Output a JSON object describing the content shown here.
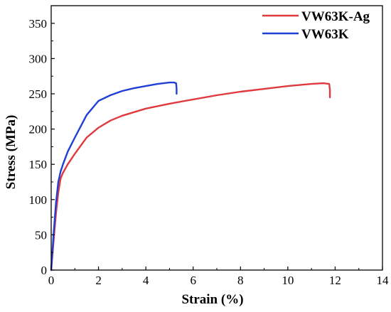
{
  "chart_data": {
    "type": "line",
    "xlabel": "Strain (%)",
    "ylabel": "Stress (MPa)",
    "xlim": [
      0,
      14
    ],
    "ylim": [
      0,
      375
    ],
    "x_ticks": [
      0,
      2,
      4,
      6,
      8,
      10,
      12,
      14
    ],
    "y_ticks": [
      0,
      50,
      100,
      150,
      200,
      250,
      300,
      350
    ],
    "grid": false,
    "legend_position": "top-right",
    "series": [
      {
        "name": "VW63K-Ag",
        "color": "#e0393e",
        "x": [
          0,
          0.1,
          0.2,
          0.3,
          0.4,
          0.5,
          0.7,
          1.0,
          1.5,
          2.0,
          2.5,
          3.0,
          4.0,
          5.0,
          6.0,
          7.0,
          8.0,
          9.0,
          10.0,
          11.0,
          11.5,
          11.75,
          11.78,
          11.78
        ],
        "y": [
          0,
          40,
          80,
          110,
          130,
          138,
          150,
          165,
          188,
          202,
          212,
          219,
          229,
          236,
          242,
          248,
          253,
          257,
          261,
          264,
          265,
          264,
          255,
          245
        ]
      },
      {
        "name": "VW63K",
        "color": "#1f3fd6",
        "x": [
          0,
          0.1,
          0.2,
          0.3,
          0.4,
          0.5,
          0.7,
          1.0,
          1.5,
          2.0,
          2.5,
          3.0,
          3.5,
          4.0,
          4.5,
          5.0,
          5.2,
          5.28,
          5.3,
          5.3
        ],
        "y": [
          0,
          50,
          95,
          125,
          140,
          150,
          168,
          188,
          220,
          240,
          248,
          254,
          258,
          261,
          264,
          266,
          266,
          265,
          258,
          250
        ]
      }
    ]
  }
}
